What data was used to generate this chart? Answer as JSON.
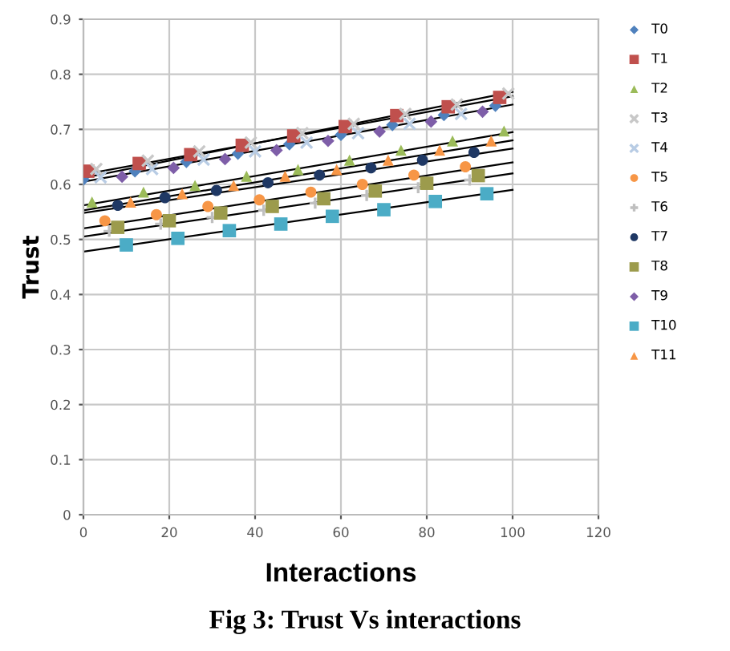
{
  "chart_data": {
    "type": "scatter",
    "title": "Fig 3: Trust Vs interactions",
    "xlabel": "Interactions",
    "ylabel": "Trust",
    "xlim": [
      0,
      120
    ],
    "xticks": [
      0,
      20,
      40,
      60,
      80,
      100,
      120
    ],
    "ylim": [
      0,
      0.9
    ],
    "yticks": [
      0,
      0.1,
      0.2,
      0.3,
      0.4,
      0.5,
      0.6,
      0.7,
      0.8,
      0.9
    ],
    "grid": true,
    "legend": "right",
    "series": [
      {
        "name": "T0",
        "color": "#4f81bd",
        "marker": "diamond",
        "x": [
          0,
          12,
          24,
          36,
          48,
          60,
          72,
          84,
          96
        ],
        "values": [
          0.609,
          0.624,
          0.641,
          0.656,
          0.673,
          0.69,
          0.708,
          0.726,
          0.743
        ]
      },
      {
        "name": "T1",
        "color": "#c0504d",
        "marker": "square",
        "x": [
          1,
          13,
          25,
          37,
          49,
          61,
          73,
          85,
          97
        ],
        "values": [
          0.624,
          0.638,
          0.654,
          0.671,
          0.688,
          0.705,
          0.725,
          0.741,
          0.758
        ]
      },
      {
        "name": "T2",
        "color": "#9bbb59",
        "marker": "triangle",
        "x": [
          2,
          14,
          26,
          38,
          50,
          62,
          74,
          86,
          98
        ],
        "values": [
          0.568,
          0.586,
          0.598,
          0.615,
          0.627,
          0.644,
          0.662,
          0.679,
          0.697
        ]
      },
      {
        "name": "T3",
        "color": "#c8c8c8",
        "marker": "cross",
        "x": [
          3,
          15,
          27,
          39,
          51,
          63,
          75,
          87,
          99
        ],
        "values": [
          0.628,
          0.643,
          0.66,
          0.676,
          0.693,
          0.71,
          0.728,
          0.745,
          0.765
        ]
      },
      {
        "name": "T4",
        "color": "#b8cce4",
        "marker": "cross",
        "x": [
          4,
          16,
          28,
          40,
          52,
          64,
          76,
          88
        ],
        "values": [
          0.613,
          0.628,
          0.645,
          0.66,
          0.676,
          0.693,
          0.71,
          0.728
        ]
      },
      {
        "name": "T5",
        "color": "#f79646",
        "marker": "circle",
        "x": [
          5,
          17,
          29,
          41,
          53,
          65,
          77,
          89
        ],
        "values": [
          0.534,
          0.545,
          0.56,
          0.572,
          0.586,
          0.6,
          0.617,
          0.632
        ]
      },
      {
        "name": "T6",
        "color": "#bfbfbf",
        "marker": "plus",
        "x": [
          6,
          18,
          30,
          42,
          54,
          66,
          78,
          90
        ],
        "values": [
          0.515,
          0.528,
          0.54,
          0.553,
          0.566,
          0.58,
          0.594,
          0.608
        ]
      },
      {
        "name": "T7",
        "color": "#1f3864",
        "marker": "circle",
        "x": [
          8,
          19,
          31,
          43,
          55,
          67,
          79,
          91
        ],
        "values": [
          0.562,
          0.576,
          0.589,
          0.603,
          0.617,
          0.63,
          0.644,
          0.658
        ]
      },
      {
        "name": "T8",
        "color": "#9c9b4c",
        "marker": "square",
        "x": [
          8,
          20,
          32,
          44,
          56,
          68,
          80,
          92
        ],
        "values": [
          0.522,
          0.534,
          0.548,
          0.56,
          0.574,
          0.588,
          0.602,
          0.616
        ]
      },
      {
        "name": "T9",
        "color": "#7e5ea8",
        "marker": "diamond",
        "x": [
          9,
          21,
          33,
          45,
          57,
          69,
          81,
          93
        ],
        "values": [
          0.614,
          0.63,
          0.646,
          0.662,
          0.679,
          0.696,
          0.714,
          0.732
        ]
      },
      {
        "name": "T10",
        "color": "#4bacc6",
        "marker": "square",
        "x": [
          10,
          22,
          34,
          46,
          58,
          70,
          82,
          94
        ],
        "values": [
          0.49,
          0.502,
          0.516,
          0.528,
          0.542,
          0.554,
          0.569,
          0.583
        ]
      },
      {
        "name": "T11",
        "color": "#f79646",
        "marker": "triangle",
        "x": [
          11,
          23,
          35,
          47,
          59,
          71,
          83,
          95
        ],
        "values": [
          0.568,
          0.583,
          0.598,
          0.615,
          0.627,
          0.644,
          0.662,
          0.679
        ]
      },
      {
        "type": "line",
        "color": "#000000",
        "x": [
          0,
          100
        ],
        "values": [
          0.618,
          0.76
        ]
      },
      {
        "type": "line",
        "color": "#000000",
        "x": [
          0,
          100
        ],
        "values": [
          0.605,
          0.745
        ]
      },
      {
        "type": "line",
        "color": "#000000",
        "x": [
          0,
          100
        ],
        "values": [
          0.612,
          0.768
        ]
      },
      {
        "type": "line",
        "color": "#000000",
        "x": [
          0,
          100
        ],
        "values": [
          0.562,
          0.695
        ]
      },
      {
        "type": "line",
        "color": "#000000",
        "x": [
          0,
          100
        ],
        "values": [
          0.553,
          0.68
        ]
      },
      {
        "type": "line",
        "color": "#000000",
        "x": [
          0,
          100
        ],
        "values": [
          0.548,
          0.665
        ]
      },
      {
        "type": "line",
        "color": "#000000",
        "x": [
          0,
          100
        ],
        "values": [
          0.52,
          0.64
        ]
      },
      {
        "type": "line",
        "color": "#000000",
        "x": [
          0,
          100
        ],
        "values": [
          0.505,
          0.62
        ]
      },
      {
        "type": "line",
        "color": "#000000",
        "x": [
          0,
          100
        ],
        "values": [
          0.478,
          0.59
        ]
      }
    ]
  }
}
